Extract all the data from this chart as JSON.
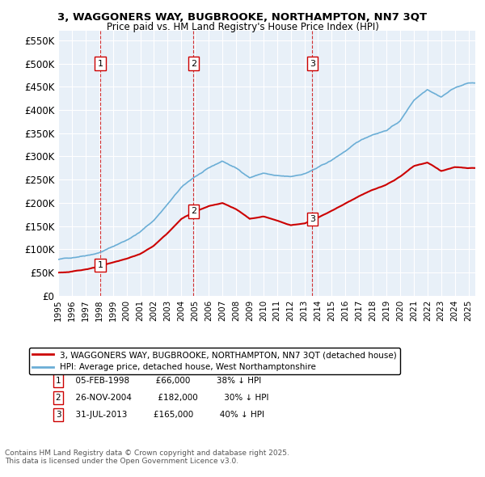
{
  "title_line1": "3, WAGGONERS WAY, BUGBROOKE, NORTHAMPTON, NN7 3QT",
  "title_line2": "Price paid vs. HM Land Registry's House Price Index (HPI)",
  "ylabel_ticks": [
    "£0",
    "£50K",
    "£100K",
    "£150K",
    "£200K",
    "£250K",
    "£300K",
    "£350K",
    "£400K",
    "£450K",
    "£500K",
    "£550K"
  ],
  "ytick_values": [
    0,
    50000,
    100000,
    150000,
    200000,
    250000,
    300000,
    350000,
    400000,
    450000,
    500000,
    550000
  ],
  "xmin": 1995.0,
  "xmax": 2025.5,
  "ymin": 0,
  "ymax": 570000,
  "sale_dates": [
    1998.09,
    2004.9,
    2013.58
  ],
  "sale_prices": [
    66000,
    182000,
    165000
  ],
  "sale_labels": [
    "1",
    "2",
    "3"
  ],
  "sale_info": [
    {
      "label": "1",
      "date": "05-FEB-1998",
      "price": "£66,000",
      "pct": "38% ↓ HPI"
    },
    {
      "label": "2",
      "date": "26-NOV-2004",
      "price": "£182,000",
      "pct": "30% ↓ HPI"
    },
    {
      "label": "3",
      "date": "31-JUL-2013",
      "price": "£165,000",
      "pct": "40% ↓ HPI"
    }
  ],
  "legend_line1": "3, WAGGONERS WAY, BUGBROOKE, NORTHAMPTON, NN7 3QT (detached house)",
  "legend_line2": "HPI: Average price, detached house, West Northamptonshire",
  "footnote": "Contains HM Land Registry data © Crown copyright and database right 2025.\nThis data is licensed under the Open Government Licence v3.0.",
  "hpi_color": "#6baed6",
  "price_color": "#cc0000",
  "background_color": "#e8f0f8",
  "grid_color": "#ffffff",
  "vline_color": "#cc0000"
}
